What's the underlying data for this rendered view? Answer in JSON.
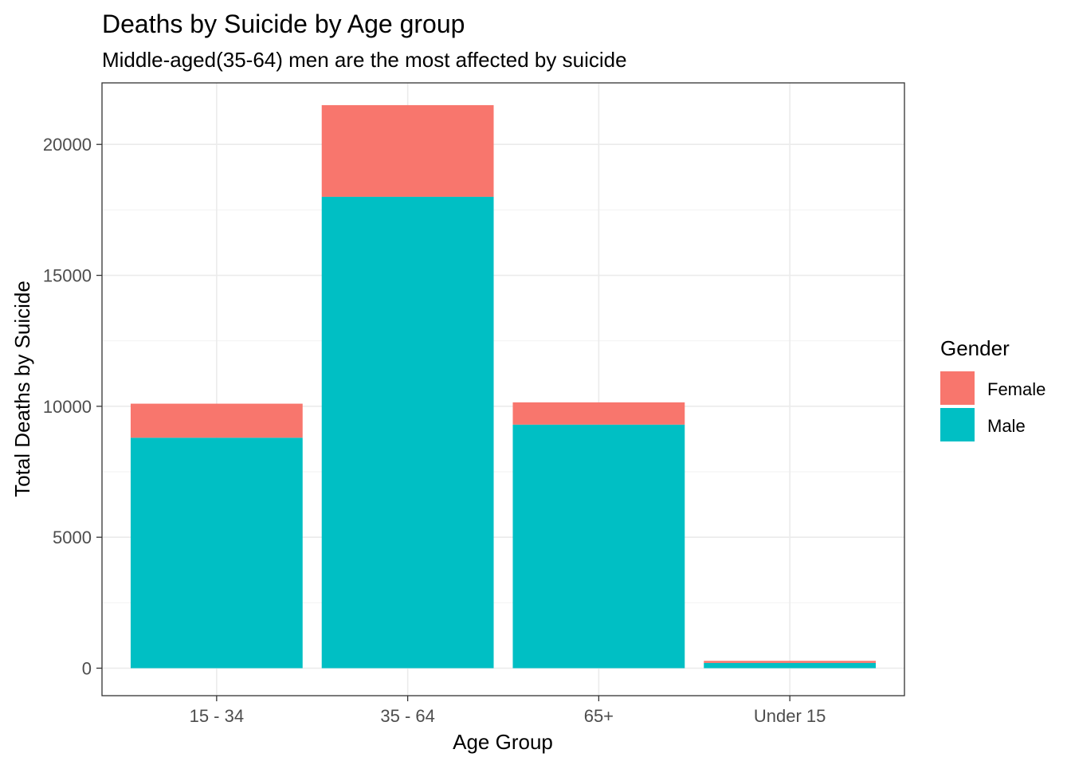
{
  "chart_data": {
    "type": "bar",
    "stacked": true,
    "title": "Deaths by Suicide by Age group",
    "subtitle": "Middle-aged(35-64) men are the most affected by suicide",
    "xlabel": "Age Group",
    "ylabel": "Total Deaths by Suicide",
    "categories": [
      "15 - 34",
      "35 - 64",
      "65+",
      "Under 15"
    ],
    "series": [
      {
        "name": "Male",
        "color": "#00BFC4",
        "values": [
          8800,
          18000,
          9300,
          200
        ]
      },
      {
        "name": "Female",
        "color": "#F8766D",
        "values": [
          1300,
          3500,
          850,
          80
        ]
      }
    ],
    "ylim": [
      -1050,
      22350
    ],
    "yticks": [
      0,
      5000,
      10000,
      15000,
      20000
    ],
    "ytick_labels": [
      "0",
      "5000",
      "10000",
      "15000",
      "20000"
    ],
    "grid": true,
    "legend": {
      "title": "Gender",
      "position": "right",
      "entries": [
        {
          "label": "Female",
          "color": "#F8766D"
        },
        {
          "label": "Male",
          "color": "#00BFC4"
        }
      ]
    }
  }
}
